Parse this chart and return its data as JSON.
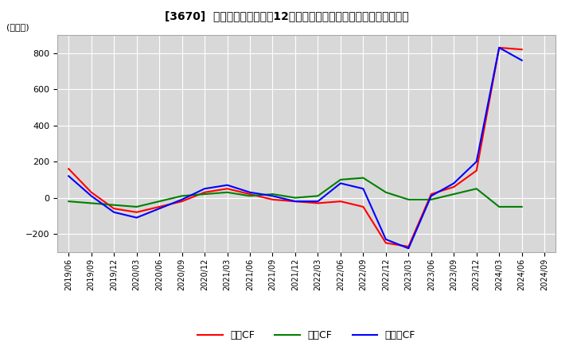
{
  "title": "[3670]  キャッシュフローの12か月移動合計の対前年同期増減額の推移",
  "ylabel": "(百万円)",
  "ylim": [
    -300,
    900
  ],
  "yticks": [
    -200,
    0,
    200,
    400,
    600,
    800
  ],
  "plot_bg_color": "#d8d8d8",
  "fig_bg_color": "#ffffff",
  "grid_color": "#ffffff",
  "dates": [
    "2019/06",
    "2019/09",
    "2019/12",
    "2020/03",
    "2020/06",
    "2020/09",
    "2020/12",
    "2021/03",
    "2021/06",
    "2021/09",
    "2021/12",
    "2022/03",
    "2022/06",
    "2022/09",
    "2022/12",
    "2023/03",
    "2023/06",
    "2023/09",
    "2023/12",
    "2024/03",
    "2024/06",
    "2024/09"
  ],
  "eigyo_cf": [
    160,
    30,
    -60,
    -80,
    -50,
    -20,
    30,
    50,
    20,
    -10,
    -20,
    -30,
    -20,
    -50,
    -250,
    -270,
    20,
    60,
    150,
    830,
    820,
    null
  ],
  "toshi_cf": [
    -20,
    -30,
    -40,
    -50,
    -20,
    10,
    20,
    30,
    10,
    20,
    0,
    10,
    100,
    110,
    30,
    -10,
    -10,
    20,
    50,
    -50,
    -50,
    null
  ],
  "free_cf": [
    120,
    10,
    -80,
    -110,
    -60,
    -10,
    50,
    70,
    30,
    10,
    -20,
    -20,
    80,
    50,
    -230,
    -280,
    10,
    80,
    200,
    830,
    760,
    null
  ],
  "eigyo_color": "#ff0000",
  "toshi_color": "#008000",
  "free_color": "#0000ff",
  "legend_labels": [
    "営業CF",
    "投資CF",
    "フリーCF"
  ]
}
